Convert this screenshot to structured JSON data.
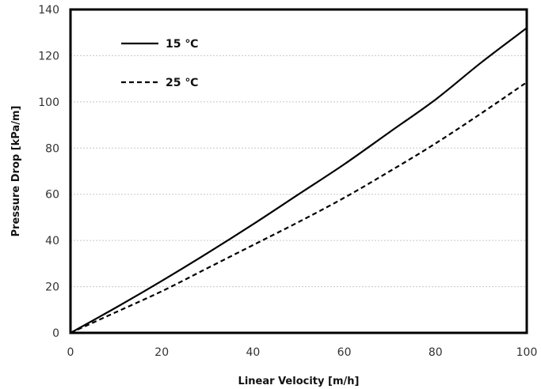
{
  "chart_data": {
    "type": "line",
    "title": "",
    "xlabel": "Linear Velocity [m/h]",
    "ylabel": "Pressure Drop [kPa/m]",
    "xlim": [
      0,
      100
    ],
    "ylim": [
      0,
      140
    ],
    "xticks": [
      0,
      20,
      40,
      60,
      80,
      100
    ],
    "yticks": [
      0,
      20,
      40,
      60,
      80,
      100,
      120,
      140
    ],
    "grid": "horizontal",
    "legend_position": "top-left",
    "series": [
      {
        "name": "15 ℃",
        "style": "solid",
        "color": "#000000",
        "x": [
          0,
          10,
          20,
          30,
          40,
          50,
          60,
          70,
          80,
          90,
          100
        ],
        "y": [
          0,
          11,
          22.5,
          34.5,
          47,
          60,
          73,
          87,
          101,
          117,
          132
        ]
      },
      {
        "name": "25 ℃",
        "style": "dashed",
        "color": "#000000",
        "x": [
          0,
          10,
          20,
          30,
          40,
          50,
          60,
          70,
          80,
          90,
          100
        ],
        "y": [
          0,
          9,
          18,
          28,
          38,
          48,
          58.5,
          70,
          82,
          95,
          108.5
        ]
      }
    ]
  }
}
